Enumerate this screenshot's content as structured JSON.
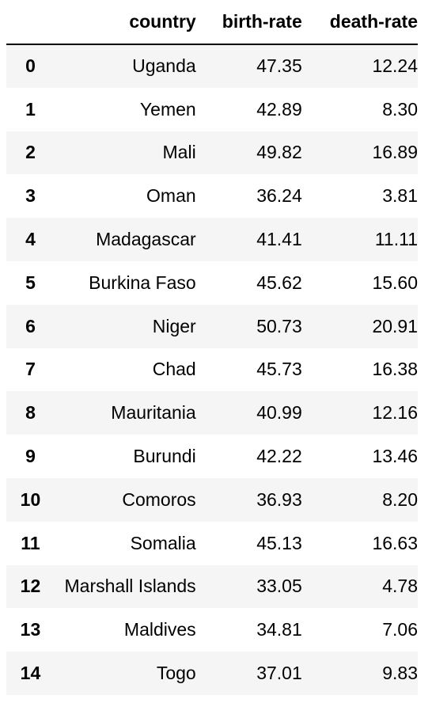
{
  "table": {
    "columns": {
      "index": "",
      "country": "country",
      "birth_rate": "birth-rate",
      "death_rate": "death-rate"
    },
    "rows": [
      {
        "index": "0",
        "country": "Uganda",
        "birth_rate": "47.35",
        "death_rate": "12.24"
      },
      {
        "index": "1",
        "country": "Yemen",
        "birth_rate": "42.89",
        "death_rate": "8.30"
      },
      {
        "index": "2",
        "country": "Mali",
        "birth_rate": "49.82",
        "death_rate": "16.89"
      },
      {
        "index": "3",
        "country": "Oman",
        "birth_rate": "36.24",
        "death_rate": "3.81"
      },
      {
        "index": "4",
        "country": "Madagascar",
        "birth_rate": "41.41",
        "death_rate": "11.11"
      },
      {
        "index": "5",
        "country": "Burkina Faso",
        "birth_rate": "45.62",
        "death_rate": "15.60"
      },
      {
        "index": "6",
        "country": "Niger",
        "birth_rate": "50.73",
        "death_rate": "20.91"
      },
      {
        "index": "7",
        "country": "Chad",
        "birth_rate": "45.73",
        "death_rate": "16.38"
      },
      {
        "index": "8",
        "country": "Mauritania",
        "birth_rate": "40.99",
        "death_rate": "12.16"
      },
      {
        "index": "9",
        "country": "Burundi",
        "birth_rate": "42.22",
        "death_rate": "13.46"
      },
      {
        "index": "10",
        "country": "Comoros",
        "birth_rate": "36.93",
        "death_rate": "8.20"
      },
      {
        "index": "11",
        "country": "Somalia",
        "birth_rate": "45.13",
        "death_rate": "16.63"
      },
      {
        "index": "12",
        "country": "Marshall Islands",
        "birth_rate": "33.05",
        "death_rate": "4.78"
      },
      {
        "index": "13",
        "country": "Maldives",
        "birth_rate": "34.81",
        "death_rate": "7.06"
      },
      {
        "index": "14",
        "country": "Togo",
        "birth_rate": "37.01",
        "death_rate": "9.83"
      }
    ]
  },
  "colors": {
    "stripe": "#f5f5f5",
    "background": "#ffffff",
    "text": "#000000",
    "header_rule": "#000000"
  }
}
